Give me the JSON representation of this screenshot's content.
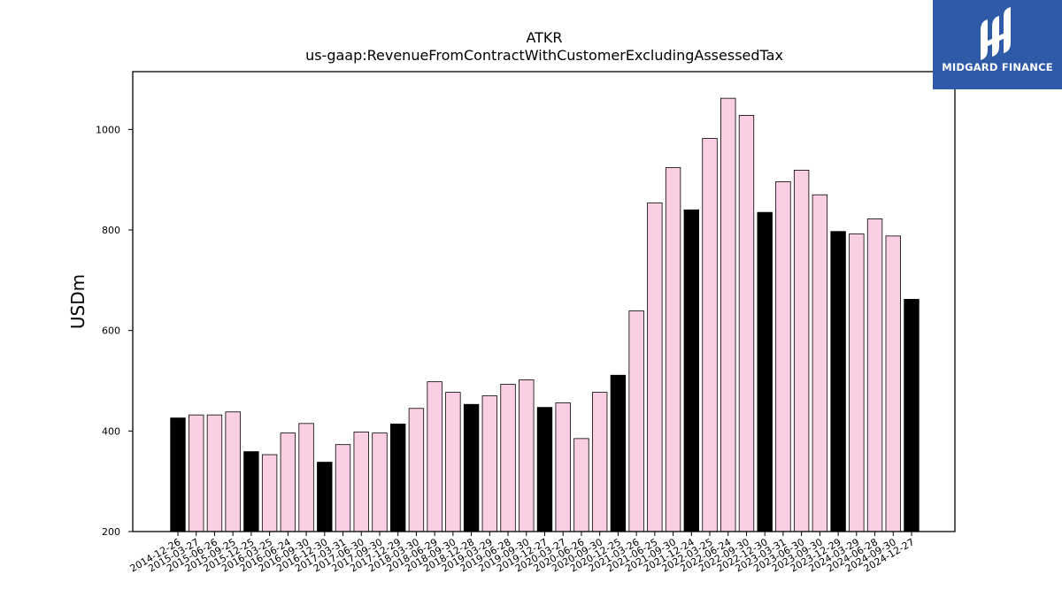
{
  "logo": {
    "text": "MIDGARD FINANCE",
    "icon": "midgard-logo-icon",
    "color": "#2f5aa8"
  },
  "chart_data": {
    "type": "bar",
    "title": "ATKR",
    "subtitle": "us-gaap:RevenueFromContractWithCustomerExcludingAssessedTax",
    "xlabel": "",
    "ylabel": "USDm",
    "ylim": [
      200,
      1115
    ],
    "yticks": [
      200,
      400,
      600,
      800,
      1000
    ],
    "grid": false,
    "colors": {
      "fiscal_q1": "#000000",
      "other": "#fbcfe3"
    },
    "categories": [
      "2014-12-26",
      "2015-03-27",
      "2015-06-26",
      "2015-09-25",
      "2015-12-25",
      "2016-03-25",
      "2016-06-24",
      "2016-09-30",
      "2016-12-30",
      "2017-03-31",
      "2017-06-30",
      "2017-09-30",
      "2017-12-29",
      "2018-03-30",
      "2018-06-29",
      "2018-09-30",
      "2018-12-28",
      "2019-03-29",
      "2019-06-28",
      "2019-09-30",
      "2019-12-27",
      "2020-03-27",
      "2020-06-26",
      "2020-09-30",
      "2020-12-25",
      "2021-03-26",
      "2021-06-25",
      "2021-09-30",
      "2021-12-24",
      "2022-03-25",
      "2022-06-24",
      "2022-09-30",
      "2022-12-30",
      "2023-03-31",
      "2023-06-30",
      "2023-09-30",
      "2023-12-29",
      "2024-03-29",
      "2024-06-28",
      "2024-09-30",
      "2024-12-27"
    ],
    "values": [
      426,
      432,
      432,
      438,
      359,
      353,
      396,
      415,
      338,
      373,
      398,
      396,
      414,
      445,
      498,
      477,
      453,
      470,
      493,
      502,
      447,
      456,
      385,
      477,
      511,
      639,
      854,
      924,
      840,
      982,
      1062,
      1028,
      835,
      896,
      919,
      870,
      797,
      792,
      822,
      788,
      662
    ],
    "highlight": [
      true,
      false,
      false,
      false,
      true,
      false,
      false,
      false,
      true,
      false,
      false,
      false,
      true,
      false,
      false,
      false,
      true,
      false,
      false,
      false,
      true,
      false,
      false,
      false,
      true,
      false,
      false,
      false,
      true,
      false,
      false,
      false,
      true,
      false,
      false,
      false,
      true,
      false,
      false,
      false,
      true
    ]
  }
}
